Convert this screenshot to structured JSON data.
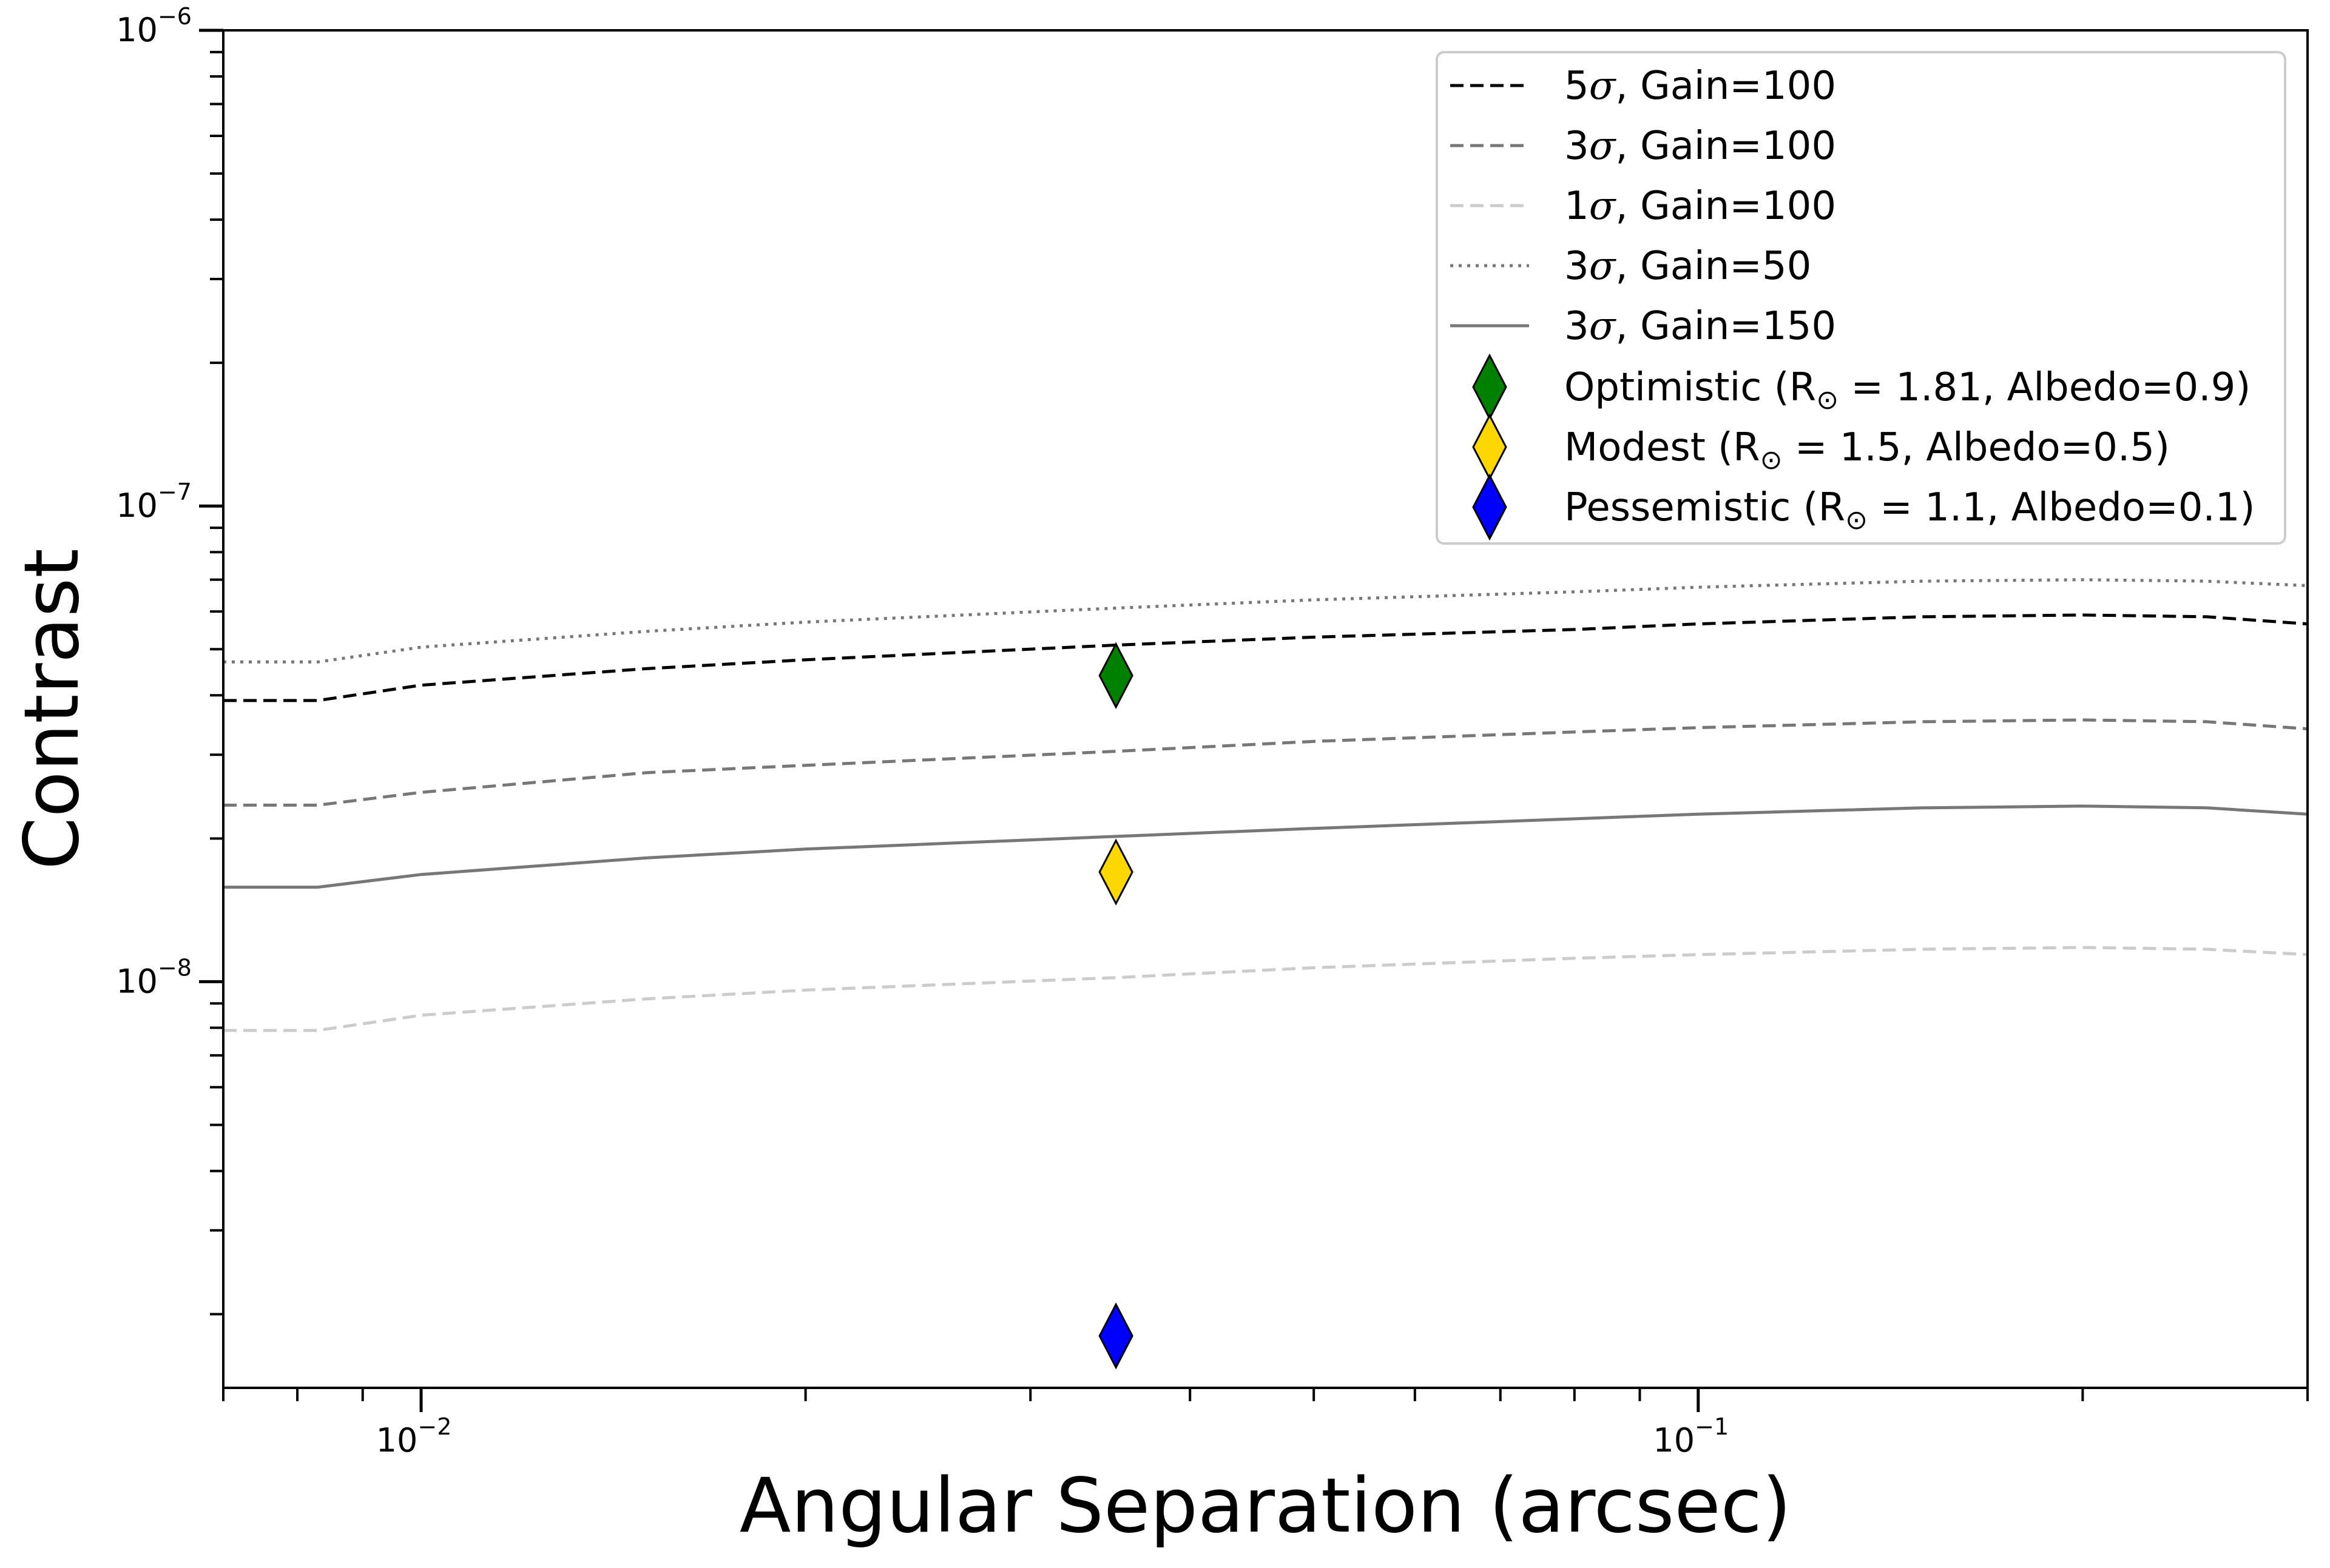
{
  "chart_data": {
    "type": "line",
    "title": "",
    "xlabel": "Angular Separation (arcsec)",
    "ylabel": "Contrast",
    "xscale": "log",
    "yscale": "log",
    "xlim": [
      0.007,
      0.3
    ],
    "ylim": [
      1.4e-09,
      1e-06
    ],
    "grid": false,
    "legend_position": "top-right",
    "x_ticks": [
      {
        "value": 0.01,
        "base": "10",
        "exp": "−2"
      },
      {
        "value": 0.1,
        "base": "10",
        "exp": "−1"
      }
    ],
    "y_ticks": [
      {
        "value": 1e-08,
        "base": "10",
        "exp": "−8"
      },
      {
        "value": 1e-07,
        "base": "10",
        "exp": "−7"
      },
      {
        "value": 1e-06,
        "base": "10",
        "exp": "−6"
      }
    ],
    "series": [
      {
        "name": "5σ, Gain=100",
        "label_prefix": "5",
        "label_suffix": ", Gain=100",
        "color": "#000000",
        "style": "dashed",
        "x": [
          0.007,
          0.0083,
          0.01,
          0.015,
          0.02,
          0.035,
          0.05,
          0.08,
          0.1,
          0.15,
          0.2,
          0.25,
          0.3
        ],
        "values": [
          3.9e-08,
          3.9e-08,
          4.2e-08,
          4.55e-08,
          4.75e-08,
          5.1e-08,
          5.3e-08,
          5.5e-08,
          5.65e-08,
          5.85e-08,
          5.9e-08,
          5.85e-08,
          5.65e-08
        ]
      },
      {
        "name": "3σ, Gain=100",
        "label_prefix": "3",
        "label_suffix": ", Gain=100",
        "color": "#777777",
        "style": "dashed",
        "x": [
          0.007,
          0.0083,
          0.01,
          0.015,
          0.02,
          0.035,
          0.05,
          0.08,
          0.1,
          0.15,
          0.2,
          0.25,
          0.3
        ],
        "values": [
          2.35e-08,
          2.35e-08,
          2.5e-08,
          2.75e-08,
          2.85e-08,
          3.05e-08,
          3.2e-08,
          3.35e-08,
          3.42e-08,
          3.52e-08,
          3.55e-08,
          3.52e-08,
          3.4e-08
        ]
      },
      {
        "name": "1σ, Gain=100",
        "label_prefix": "1",
        "label_suffix": ", Gain=100",
        "color": "#cccccc",
        "style": "dashed",
        "x": [
          0.007,
          0.0083,
          0.01,
          0.015,
          0.02,
          0.035,
          0.05,
          0.08,
          0.1,
          0.15,
          0.2,
          0.25,
          0.3
        ],
        "values": [
          7.9e-09,
          7.9e-09,
          8.5e-09,
          9.2e-09,
          9.6e-09,
          1.02e-08,
          1.07e-08,
          1.12e-08,
          1.14e-08,
          1.17e-08,
          1.18e-08,
          1.17e-08,
          1.14e-08
        ]
      },
      {
        "name": "3σ, Gain=50",
        "label_prefix": "3",
        "label_suffix": ", Gain=50",
        "color": "#777777",
        "style": "dotted",
        "x": [
          0.007,
          0.0083,
          0.01,
          0.015,
          0.02,
          0.035,
          0.05,
          0.08,
          0.1,
          0.15,
          0.2,
          0.25,
          0.3
        ],
        "values": [
          4.7e-08,
          4.7e-08,
          5.05e-08,
          5.45e-08,
          5.7e-08,
          6.1e-08,
          6.35e-08,
          6.6e-08,
          6.75e-08,
          6.95e-08,
          7e-08,
          6.95e-08,
          6.8e-08
        ]
      },
      {
        "name": "3σ, Gain=150",
        "label_prefix": "3",
        "label_suffix": ", Gain=150",
        "color": "#777777",
        "style": "solid",
        "x": [
          0.007,
          0.0083,
          0.01,
          0.015,
          0.02,
          0.035,
          0.05,
          0.08,
          0.1,
          0.15,
          0.2,
          0.25,
          0.3
        ],
        "values": [
          1.58e-08,
          1.58e-08,
          1.68e-08,
          1.82e-08,
          1.9e-08,
          2.02e-08,
          2.1e-08,
          2.2e-08,
          2.25e-08,
          2.32e-08,
          2.34e-08,
          2.32e-08,
          2.25e-08
        ]
      }
    ],
    "markers": [
      {
        "name": "Optimistic",
        "label_pre": "Optimistic (R",
        "label_sub": "⊙",
        "label_post": " = 1.81, Albedo=0.9)",
        "x": 0.035,
        "y": 4.4e-08,
        "color": "#008000"
      },
      {
        "name": "Modest",
        "label_pre": "Modest (R",
        "label_sub": "⊙",
        "label_post": " = 1.5, Albedo=0.5)",
        "x": 0.035,
        "y": 1.7e-08,
        "color": "#ffd700"
      },
      {
        "name": "Pessemistic",
        "label_pre": "Pessemistic (R",
        "label_sub": "⊙",
        "label_post": " = 1.1, Albedo=0.1)",
        "x": 0.035,
        "y": 1.8e-09,
        "color": "#0000ff"
      }
    ]
  }
}
